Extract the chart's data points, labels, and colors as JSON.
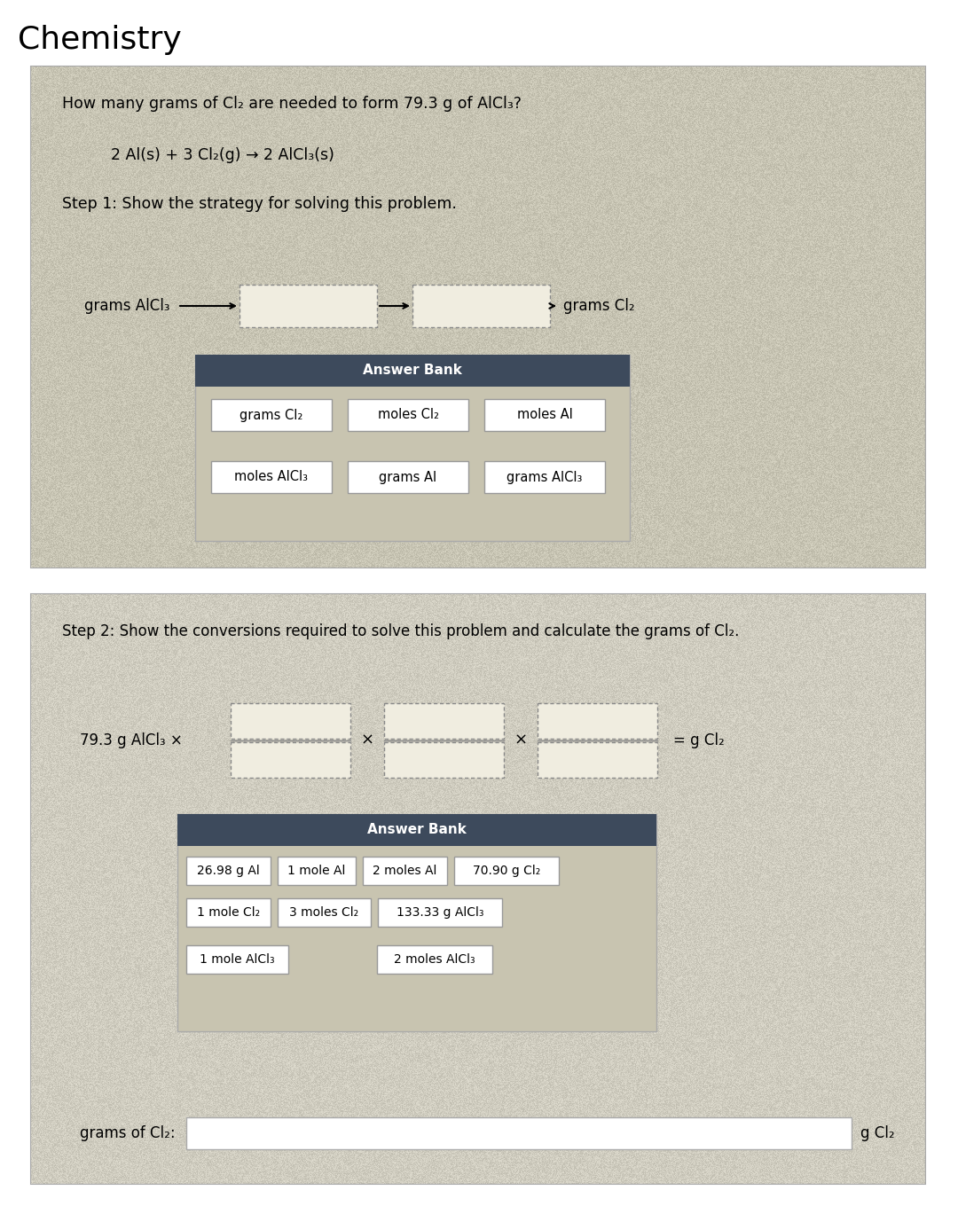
{
  "title": "Chemistry",
  "title_fontsize": 26,
  "white": "#ffffff",
  "panel_bg": "#ccc9b8",
  "panel_bg_light": "#dedad0",
  "dark_header": "#3d4a5c",
  "answer_bg": "#c8c4b0",
  "panel1": {
    "question": "How many grams of Cl₂ are needed to form 79.3 g of AlCl₃?",
    "equation": "2 Al(s) + 3 Cl₂(g) → 2 AlCl₃(s)",
    "step_label": "Step 1: Show the strategy for solving this problem.",
    "flow_left": "grams AlCl₃",
    "flow_right": "grams Cl₂",
    "answer_bank_title": "Answer Bank",
    "answer_bank_row1": [
      "grams Cl₂",
      "moles Cl₂",
      "moles Al"
    ],
    "answer_bank_row2": [
      "moles AlCl₃",
      "grams Al",
      "grams AlCl₃"
    ]
  },
  "panel2": {
    "step_label": "Step 2: Show the conversions required to solve this problem and calculate the grams of Cl₂.",
    "prefix": "79.3 g AlCl₃ ×",
    "times": "×",
    "suffix": "= g Cl₂",
    "answer_bank_title": "Answer Bank",
    "answer_bank_row1": [
      "26.98 g Al",
      "1 mole Al",
      "2 moles Al",
      "70.90 g Cl₂"
    ],
    "answer_bank_row2": [
      "1 mole Cl₂",
      "3 moles Cl₂",
      "133.33 g AlCl₃"
    ],
    "answer_bank_row3": [
      "1 mole AlCl₃",
      "2 moles AlCl₃"
    ],
    "footer_label": "grams of Cl₂:",
    "footer_suffix": "g Cl₂"
  }
}
